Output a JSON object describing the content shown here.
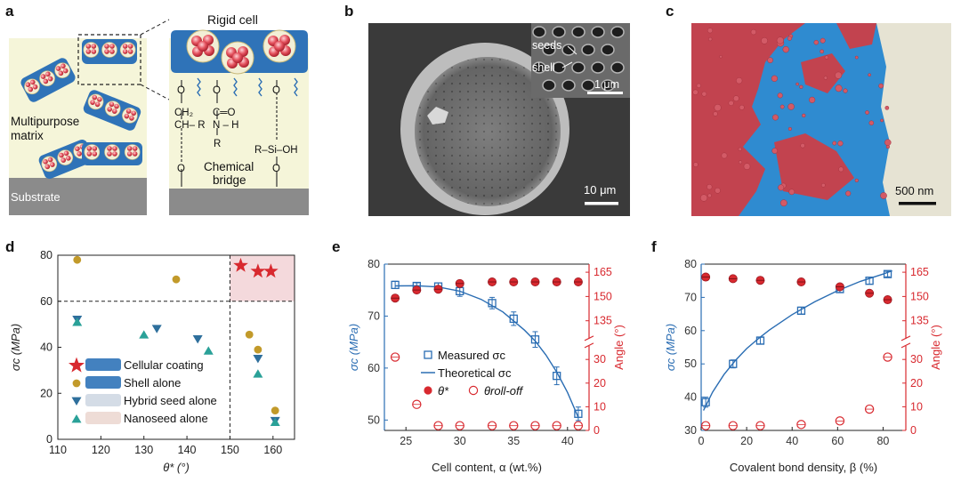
{
  "panels": {
    "a": {
      "label": "a",
      "rigid_cell": "Rigid cell",
      "matrix_line1": "Multipurpose",
      "matrix_line2": "matrix",
      "substrate": "Substrate",
      "chemical_line1": "Chemical",
      "chemical_line2": "bridge",
      "chem_o": "O",
      "chem_ch2": "CH₂",
      "chem_ch_r": "CH– R",
      "chem_c_o": "C═O",
      "chem_n_h": "N – H",
      "chem_r": "R",
      "chem_si": "R–Si–OH"
    },
    "b": {
      "label": "b",
      "inset_seeds": "seeds",
      "inset_shell": "shell",
      "inset_scale": "1 μm",
      "scale": "10 μm"
    },
    "c": {
      "label": "c",
      "scale": "500 nm"
    },
    "d": {
      "label": "d"
    },
    "e": {
      "label": "e"
    },
    "f": {
      "label": "f"
    }
  },
  "chart_data": [
    {
      "panel": "d",
      "type": "scatter",
      "xlabel": "θ* (°)",
      "ylabel": "σc (MPa)",
      "xlim": [
        110,
        165
      ],
      "ylim": [
        0,
        80
      ],
      "xticks": [
        "110",
        "120",
        "130",
        "140",
        "150",
        "160"
      ],
      "yticks": [
        "0",
        "20",
        "40",
        "60",
        "80"
      ],
      "thresholds": {
        "x": 150,
        "y": 60
      },
      "series": [
        {
          "name": "Cellular coating",
          "marker": "star",
          "color": "#d8292f",
          "points": [
            [
              152.5,
              75.5
            ],
            [
              156.5,
              73
            ],
            [
              159.5,
              73
            ]
          ]
        },
        {
          "name": "Shell alone",
          "marker": "circle",
          "color": "#c29a2a",
          "points": [
            [
              114.5,
              78
            ],
            [
              137.5,
              69.5
            ],
            [
              154.5,
              45.5
            ],
            [
              156.5,
              39
            ],
            [
              160.5,
              12.5
            ]
          ]
        },
        {
          "name": "Hybrid seed alone",
          "marker": "tri-down",
          "color": "#2e6f9c",
          "points": [
            [
              114.5,
              52
            ],
            [
              133,
              48
            ],
            [
              142.5,
              43.5
            ],
            [
              156.5,
              35
            ],
            [
              160.5,
              8
            ]
          ]
        },
        {
          "name": "Nanoseed alone",
          "marker": "tri-up",
          "color": "#2aa198",
          "points": [
            [
              114.5,
              51
            ],
            [
              130,
              45.5
            ],
            [
              145,
              38.5
            ],
            [
              156.5,
              28.5
            ],
            [
              160.5,
              7.5
            ]
          ]
        }
      ]
    },
    {
      "panel": "e",
      "type": "line",
      "xlabel": "Cell content, α (wt.%)",
      "ylabel_left": "σc (MPa)",
      "ylabel_right": "Angle (°)",
      "xlim": [
        23,
        42
      ],
      "ylim_left": [
        48,
        80
      ],
      "xticks": [
        "25",
        "30",
        "35",
        "40"
      ],
      "yticks_left": [
        "50",
        "60",
        "70",
        "80"
      ],
      "yticks_right_upper": [
        "135",
        "150",
        "165"
      ],
      "yticks_right_lower": [
        "0",
        "10",
        "20",
        "30"
      ],
      "legend": {
        "measured": "Measured σc",
        "theoretical": "Theoretical σc",
        "theta": "θ*",
        "rolloff": "θroll-off"
      },
      "measured_sigma": [
        [
          24,
          76,
          0.7
        ],
        [
          26,
          75.8,
          0.6
        ],
        [
          28,
          75.7,
          0.7
        ],
        [
          30,
          74.8,
          1
        ],
        [
          33,
          72.5,
          1.1
        ],
        [
          35,
          69.5,
          1.3
        ],
        [
          37,
          65.5,
          1.5
        ],
        [
          39,
          58.5,
          1.7
        ],
        [
          41,
          51.2,
          1.3
        ]
      ],
      "theoretical_sigma": [
        [
          24,
          75.8
        ],
        [
          26,
          75.85
        ],
        [
          28,
          75.6
        ],
        [
          30,
          74.8
        ],
        [
          32,
          73.2
        ],
        [
          34,
          70.8
        ],
        [
          36,
          67.3
        ],
        [
          37,
          65.2
        ],
        [
          38,
          62.5
        ],
        [
          39,
          59.2
        ],
        [
          40,
          55.3
        ],
        [
          41,
          50.5
        ]
      ],
      "theta_star": [
        [
          24,
          149
        ],
        [
          26,
          154
        ],
        [
          28,
          154.5
        ],
        [
          30,
          158
        ],
        [
          33,
          159
        ],
        [
          35,
          159
        ],
        [
          37,
          159
        ],
        [
          39,
          159
        ],
        [
          41,
          159
        ]
      ],
      "theta_rolloff": [
        [
          24,
          31
        ],
        [
          26,
          11
        ],
        [
          28,
          2
        ],
        [
          30,
          2
        ],
        [
          33,
          2
        ],
        [
          35,
          2
        ],
        [
          37,
          2
        ],
        [
          39,
          2
        ],
        [
          41,
          2
        ]
      ]
    },
    {
      "panel": "f",
      "type": "line",
      "xlabel": "Covalent bond density, β (%)",
      "ylabel_left": "σc (MPa)",
      "ylabel_right": "Angle (°)",
      "xlim": [
        0,
        90
      ],
      "ylim_left": [
        30,
        80
      ],
      "xticks": [
        "0",
        "20",
        "40",
        "60",
        "80"
      ],
      "yticks_left": [
        "30",
        "40",
        "50",
        "60",
        "70",
        "80"
      ],
      "yticks_right_upper": [
        "135",
        "150",
        "165"
      ],
      "yticks_right_lower": [
        "0",
        "10",
        "20",
        "30"
      ],
      "measured_sigma": [
        [
          2,
          38.5,
          1.5
        ],
        [
          14,
          50,
          1.2
        ],
        [
          26,
          57,
          1
        ],
        [
          44,
          66,
          1
        ],
        [
          61,
          72.5,
          1
        ],
        [
          74,
          75,
          1
        ],
        [
          82,
          77,
          0.8
        ]
      ],
      "theoretical_sigma": [
        [
          1,
          36
        ],
        [
          5,
          41.5
        ],
        [
          10,
          46.8
        ],
        [
          15,
          51
        ],
        [
          20,
          54.6
        ],
        [
          25,
          57.5
        ],
        [
          30,
          60.2
        ],
        [
          40,
          64.8
        ],
        [
          50,
          68.7
        ],
        [
          60,
          72
        ],
        [
          70,
          74.8
        ],
        [
          80,
          77
        ],
        [
          84,
          78
        ]
      ],
      "theta_star": [
        [
          2,
          162
        ],
        [
          14,
          161
        ],
        [
          26,
          160
        ],
        [
          44,
          159
        ],
        [
          61,
          156
        ],
        [
          74,
          152
        ],
        [
          82,
          148
        ]
      ],
      "theta_rolloff": [
        [
          2,
          2
        ],
        [
          14,
          2
        ],
        [
          26,
          2
        ],
        [
          44,
          2.5
        ],
        [
          61,
          4
        ],
        [
          74,
          9
        ],
        [
          82,
          31
        ]
      ]
    }
  ],
  "colors": {
    "blue": "#2a6db3",
    "red": "#d8292f",
    "matrix": "#f5f5d9",
    "cell_blue": "#2f73b8"
  }
}
